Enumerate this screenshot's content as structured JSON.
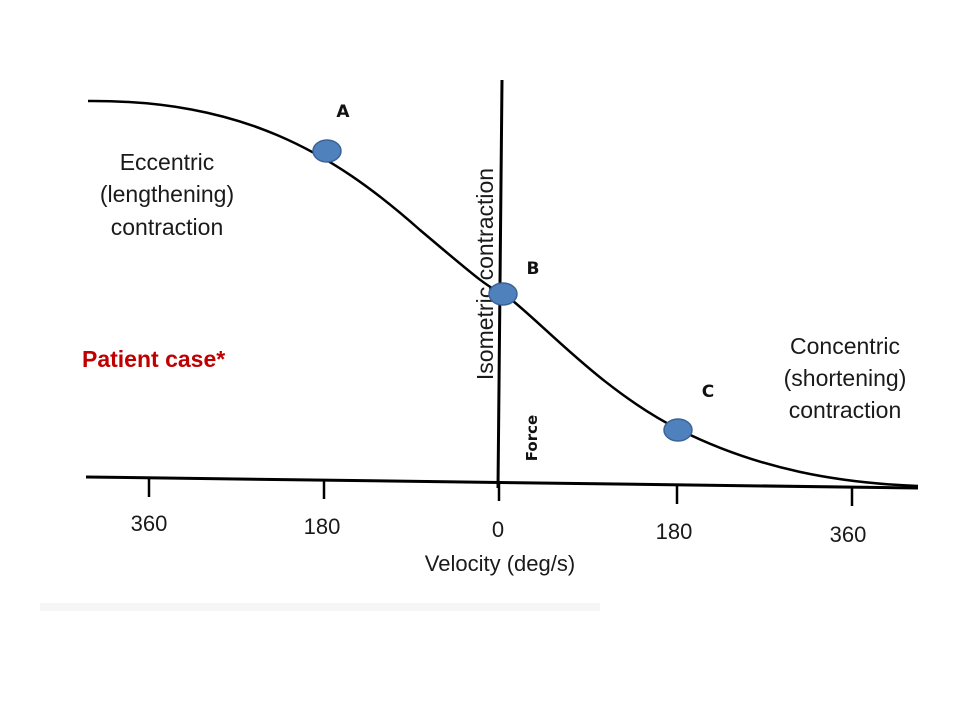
{
  "diagram": {
    "x_axis": {
      "title": "Velocity (deg/s)",
      "ticks": [
        "360",
        "180",
        "0",
        "180",
        "360"
      ]
    },
    "y_axis": {
      "label": "Force",
      "vertical_caption": "Isometric contraction"
    },
    "regions": {
      "eccentric": [
        "Eccentric",
        "(lengthening)",
        "contraction"
      ],
      "concentric": [
        "Concentric",
        "(shortening)",
        "contraction"
      ]
    },
    "points": [
      {
        "label": "A",
        "velocity": -180,
        "type": "eccentric"
      },
      {
        "label": "B",
        "velocity": 0,
        "type": "isometric"
      },
      {
        "label": "C",
        "velocity": 180,
        "type": "concentric"
      }
    ],
    "annotation": "Patient case*",
    "colors": {
      "curve": "#000000",
      "point_fill": "#4f81bd",
      "point_stroke": "#3a6496",
      "annotation": "#c00000"
    }
  }
}
